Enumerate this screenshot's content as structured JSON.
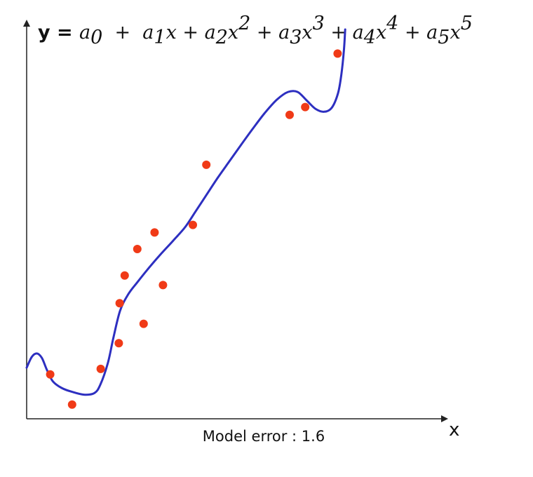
{
  "chart_data": {
    "type": "scatter",
    "title": "y = a0 + a1x + a2x2 + a3x3 + a4x4 + a5x5",
    "title_parts": [
      {
        "text": "y = ",
        "kind": "plain"
      },
      {
        "text": "a",
        "kind": "var"
      },
      {
        "text": "0",
        "kind": "sub"
      },
      {
        "text": "  +  ",
        "kind": "op"
      },
      {
        "text": "a",
        "kind": "var"
      },
      {
        "text": "1",
        "kind": "sub"
      },
      {
        "text": "x",
        "kind": "var"
      },
      {
        "text": " + ",
        "kind": "op"
      },
      {
        "text": "a",
        "kind": "var"
      },
      {
        "text": "2",
        "kind": "sub"
      },
      {
        "text": "x",
        "kind": "var"
      },
      {
        "text": "2",
        "kind": "sup"
      },
      {
        "text": " + ",
        "kind": "op"
      },
      {
        "text": "a",
        "kind": "var"
      },
      {
        "text": "3",
        "kind": "sub"
      },
      {
        "text": "x",
        "kind": "var"
      },
      {
        "text": "3",
        "kind": "sup"
      },
      {
        "text": " + ",
        "kind": "op"
      },
      {
        "text": "a",
        "kind": "var"
      },
      {
        "text": "4",
        "kind": "sub"
      },
      {
        "text": "x",
        "kind": "var"
      },
      {
        "text": "4",
        "kind": "sup"
      },
      {
        "text": " + ",
        "kind": "op"
      },
      {
        "text": "a",
        "kind": "var"
      },
      {
        "text": "5",
        "kind": "sub"
      },
      {
        "text": "x",
        "kind": "var"
      },
      {
        "text": "5",
        "kind": "sup"
      }
    ],
    "xlabel": "x",
    "ylabel": "",
    "footer": "Model error : 1.6",
    "grid": false,
    "xlim": [
      0,
      100
    ],
    "ylim": [
      0,
      100
    ],
    "points_color": "#f03a17",
    "curve_color": "#2d2fc0",
    "points": [
      {
        "x": 5.6,
        "y": 11.2
      },
      {
        "x": 10.8,
        "y": 3.6
      },
      {
        "x": 17.6,
        "y": 12.6
      },
      {
        "x": 21.9,
        "y": 19.1
      },
      {
        "x": 22.1,
        "y": 29.2
      },
      {
        "x": 23.3,
        "y": 36.2
      },
      {
        "x": 26.3,
        "y": 42.9
      },
      {
        "x": 27.8,
        "y": 24.0
      },
      {
        "x": 30.4,
        "y": 47.1
      },
      {
        "x": 32.4,
        "y": 33.8
      },
      {
        "x": 39.5,
        "y": 49.0
      },
      {
        "x": 42.7,
        "y": 64.2
      },
      {
        "x": 62.5,
        "y": 76.8
      },
      {
        "x": 66.2,
        "y": 78.8
      },
      {
        "x": 73.9,
        "y": 92.3
      }
    ],
    "fit_curve": [
      {
        "x": 0.0,
        "y": 12.9
      },
      {
        "x": 1.2,
        "y": 15.6
      },
      {
        "x": 2.4,
        "y": 16.5
      },
      {
        "x": 3.6,
        "y": 15.4
      },
      {
        "x": 4.8,
        "y": 12.4
      },
      {
        "x": 6.2,
        "y": 9.5
      },
      {
        "x": 8.3,
        "y": 7.8
      },
      {
        "x": 10.8,
        "y": 6.8
      },
      {
        "x": 13.6,
        "y": 6.1
      },
      {
        "x": 16.1,
        "y": 6.5
      },
      {
        "x": 17.5,
        "y": 8.6
      },
      {
        "x": 19.3,
        "y": 14.1
      },
      {
        "x": 20.6,
        "y": 20.4
      },
      {
        "x": 22.2,
        "y": 27.3
      },
      {
        "x": 24.1,
        "y": 31.4
      },
      {
        "x": 26.3,
        "y": 34.5
      },
      {
        "x": 28.7,
        "y": 37.7
      },
      {
        "x": 31.6,
        "y": 41.3
      },
      {
        "x": 34.8,
        "y": 45.0
      },
      {
        "x": 37.7,
        "y": 48.5
      },
      {
        "x": 40.2,
        "y": 52.5
      },
      {
        "x": 42.8,
        "y": 56.7
      },
      {
        "x": 45.4,
        "y": 60.9
      },
      {
        "x": 48.2,
        "y": 65.1
      },
      {
        "x": 51.0,
        "y": 69.3
      },
      {
        "x": 53.8,
        "y": 73.4
      },
      {
        "x": 56.6,
        "y": 77.3
      },
      {
        "x": 59.5,
        "y": 80.7
      },
      {
        "x": 62.1,
        "y": 82.6
      },
      {
        "x": 64.4,
        "y": 82.6
      },
      {
        "x": 66.6,
        "y": 80.4
      },
      {
        "x": 68.7,
        "y": 78.3
      },
      {
        "x": 70.7,
        "y": 77.6
      },
      {
        "x": 72.5,
        "y": 78.6
      },
      {
        "x": 74.0,
        "y": 82.3
      },
      {
        "x": 74.8,
        "y": 87.1
      },
      {
        "x": 75.4,
        "y": 93.2
      },
      {
        "x": 75.7,
        "y": 98.4
      }
    ]
  }
}
